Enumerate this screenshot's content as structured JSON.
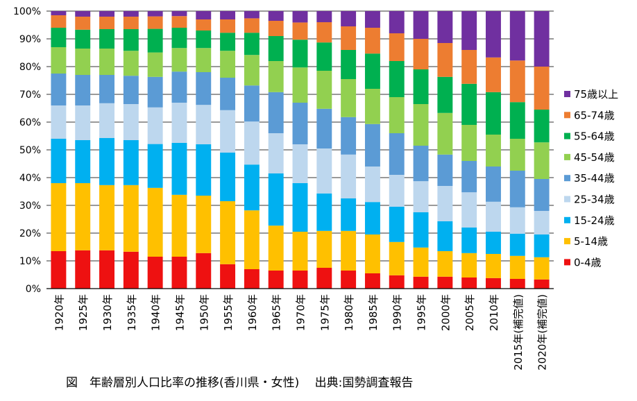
{
  "chart_data": {
    "type": "bar",
    "stacked": true,
    "caption": "図　年齢層別人口比率の推移(香川県・女性)　 出典:国勢調査報告",
    "ylim": [
      0,
      100
    ],
    "y_ticks": [
      "0%",
      "10%",
      "20%",
      "30%",
      "40%",
      "50%",
      "60%",
      "70%",
      "80%",
      "90%",
      "100%"
    ],
    "grid": true,
    "legend_position": "right",
    "categories": [
      "1920年",
      "1925年",
      "1930年",
      "1935年",
      "1940年",
      "1945年",
      "1950年",
      "1955年",
      "1960年",
      "1965年",
      "1970年",
      "1975年",
      "1980年",
      "1985年",
      "1990年",
      "1995年",
      "2000年",
      "2005年",
      "2010年",
      "2015年(補完値)",
      "2020年(補完値)"
    ],
    "series": [
      {
        "name": "0-4歳",
        "color": "#ee1111",
        "values": [
          13.5,
          13.8,
          13.8,
          13.3,
          11.5,
          11.5,
          12.8,
          8.8,
          7.0,
          6.5,
          6.5,
          7.5,
          6.5,
          5.5,
          4.8,
          4.3,
          4.3,
          4.0,
          3.8,
          3.5,
          3.3
        ]
      },
      {
        "name": "5-14歳",
        "color": "#ffc000",
        "values": [
          24.5,
          24.2,
          23.5,
          24.0,
          24.8,
          22.3,
          20.7,
          22.7,
          21.2,
          16.2,
          14.0,
          13.3,
          14.3,
          14.0,
          12.0,
          10.5,
          9.2,
          8.8,
          8.7,
          8.3,
          8.0
        ]
      },
      {
        "name": "15-24歳",
        "color": "#00b0f0",
        "values": [
          16.0,
          15.5,
          17.0,
          16.2,
          15.8,
          18.7,
          18.5,
          17.5,
          16.5,
          18.8,
          17.5,
          13.5,
          11.7,
          11.7,
          12.7,
          12.7,
          10.8,
          9.2,
          8.0,
          8.0,
          8.2
        ]
      },
      {
        "name": "25-34歳",
        "color": "#bdd7ee",
        "values": [
          12.0,
          12.5,
          12.5,
          13.0,
          13.2,
          14.5,
          14.2,
          15.3,
          15.5,
          14.5,
          14.0,
          16.2,
          15.8,
          12.8,
          11.5,
          11.2,
          12.7,
          12.7,
          10.8,
          9.5,
          8.5
        ]
      },
      {
        "name": "35-44歳",
        "color": "#5b9bd5",
        "values": [
          11.5,
          11.0,
          10.2,
          10.2,
          11.0,
          11.2,
          11.8,
          11.7,
          13.0,
          14.8,
          15.0,
          14.3,
          13.5,
          15.3,
          15.0,
          12.8,
          11.3,
          11.3,
          12.7,
          13.2,
          11.5
        ]
      },
      {
        "name": "45-54歳",
        "color": "#92d050",
        "values": [
          9.5,
          9.5,
          9.5,
          9.0,
          8.8,
          8.5,
          8.7,
          9.7,
          11.0,
          11.2,
          12.7,
          13.7,
          13.7,
          12.7,
          13.0,
          15.0,
          15.0,
          13.0,
          11.5,
          11.5,
          13.2
        ]
      },
      {
        "name": "55-64歳",
        "color": "#00b050",
        "values": [
          7.0,
          6.8,
          7.0,
          7.8,
          8.5,
          7.3,
          6.3,
          6.5,
          8.0,
          9.0,
          10.0,
          10.2,
          10.5,
          12.7,
          13.0,
          12.5,
          13.0,
          14.8,
          15.3,
          13.2,
          11.8
        ]
      },
      {
        "name": "65-74歳",
        "color": "#ed7d31",
        "values": [
          4.5,
          4.7,
          4.5,
          4.5,
          4.5,
          4.2,
          4.0,
          4.8,
          5.2,
          5.5,
          6.2,
          7.3,
          8.5,
          9.3,
          10.0,
          11.0,
          12.2,
          12.2,
          12.5,
          15.0,
          15.5
        ]
      },
      {
        "name": "75歳以上",
        "color": "#7030a0",
        "values": [
          1.5,
          2.0,
          2.0,
          2.0,
          1.9,
          1.8,
          3.0,
          3.0,
          2.6,
          3.5,
          4.1,
          4.0,
          5.5,
          6.0,
          8.0,
          10.0,
          11.5,
          14.0,
          16.7,
          17.8,
          20.0
        ]
      }
    ]
  }
}
